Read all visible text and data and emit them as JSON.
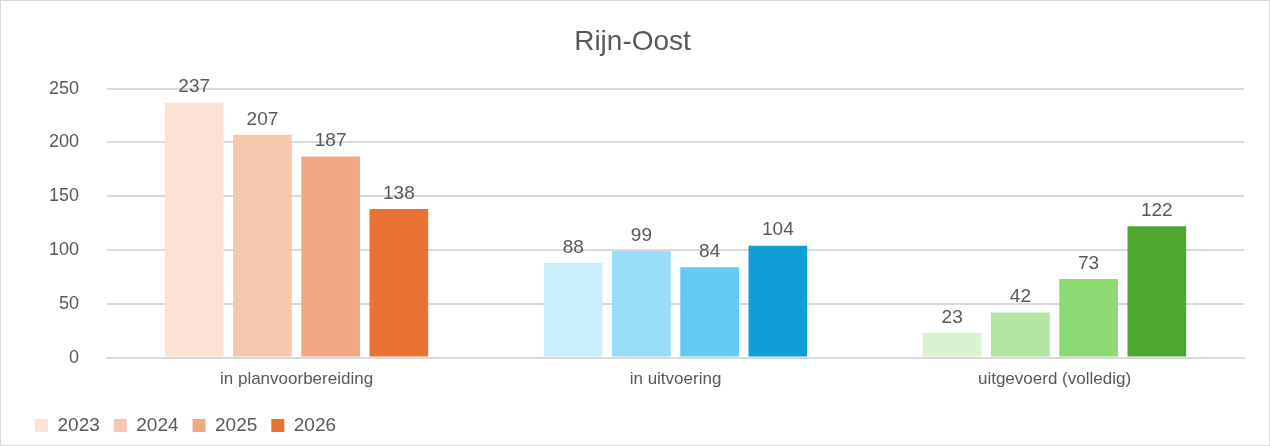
{
  "chart_data": {
    "type": "bar",
    "title": "Rijn-Oost",
    "categories": [
      "in planvoorbereiding",
      "in uitvoering",
      "uitgevoerd (volledig)"
    ],
    "series": [
      {
        "name": "2023",
        "color": "#fbe2d5",
        "colors": [
          "#fbe2d5",
          "#caeefb",
          "#d9f2d0"
        ],
        "values": [
          237,
          88,
          23
        ]
      },
      {
        "name": "2024",
        "color": "#f6c6ad",
        "colors": [
          "#f6c6ad",
          "#97dcf8",
          "#b4e5a2"
        ],
        "values": [
          207,
          99,
          42
        ]
      },
      {
        "name": "2025",
        "color": "#f1a983",
        "colors": [
          "#f1a983",
          "#61cbf4",
          "#8ed973"
        ],
        "values": [
          187,
          84,
          73
        ]
      },
      {
        "name": "2026",
        "color": "#e97132",
        "colors": [
          "#e97132",
          "#0f9ed5",
          "#4ea72e"
        ],
        "values": [
          138,
          104,
          122
        ]
      }
    ],
    "ylim": [
      0,
      250
    ],
    "yticks": [
      0,
      50,
      100,
      150,
      200,
      250
    ],
    "grid": "y",
    "legend": "bottom left",
    "data_labels": true
  }
}
